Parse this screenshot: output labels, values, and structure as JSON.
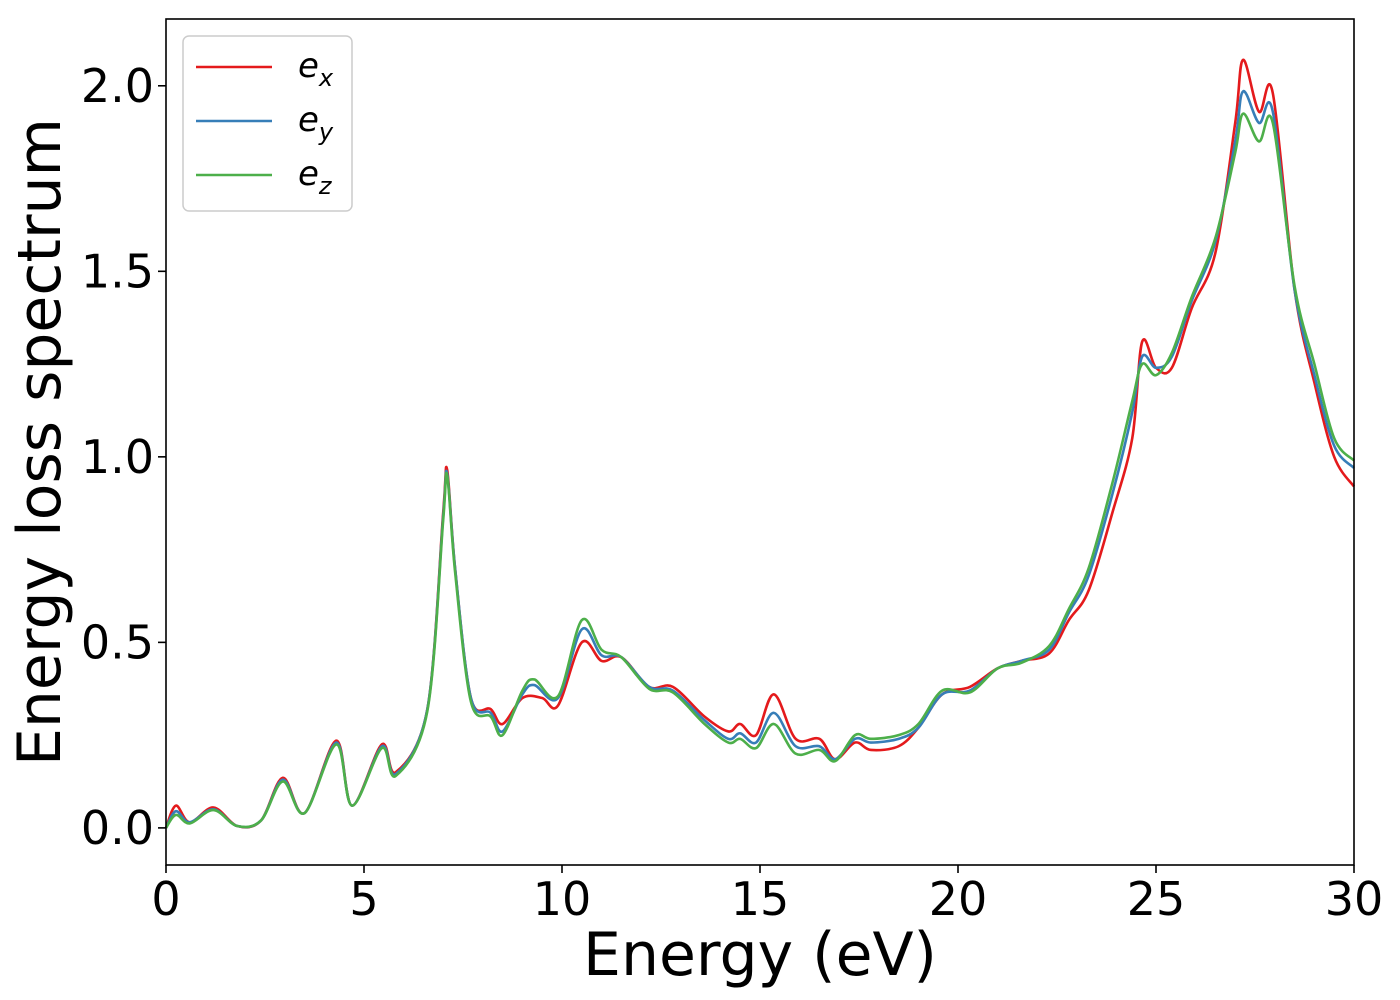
{
  "chart_data": {
    "type": "line",
    "title": "",
    "xlabel": "Energy (eV)",
    "ylabel": "Energy loss spectrum",
    "xlim": [
      0,
      30
    ],
    "ylim": [
      -0.1,
      2.18
    ],
    "x_ticks": [
      "0",
      "5",
      "10",
      "15",
      "20",
      "25",
      "30"
    ],
    "y_ticks": [
      "0.0",
      "0.5",
      "1.0",
      "1.5",
      "2.0"
    ],
    "grid": false,
    "legend_position": "top-left",
    "series": [
      {
        "name": "e",
        "subscript": "x",
        "color": "#e41a1c",
        "points": [
          [
            0,
            0.0
          ],
          [
            0.25,
            0.06
          ],
          [
            0.6,
            0.015
          ],
          [
            1.2,
            0.055
          ],
          [
            1.8,
            0.005
          ],
          [
            2.4,
            0.02
          ],
          [
            2.95,
            0.135
          ],
          [
            3.5,
            0.04
          ],
          [
            4.3,
            0.235
          ],
          [
            4.7,
            0.06
          ],
          [
            5.45,
            0.225
          ],
          [
            5.8,
            0.15
          ],
          [
            6.6,
            0.32
          ],
          [
            7.0,
            0.85
          ],
          [
            7.1,
            0.965
          ],
          [
            7.3,
            0.7
          ],
          [
            7.7,
            0.35
          ],
          [
            8.2,
            0.32
          ],
          [
            8.5,
            0.28
          ],
          [
            9.0,
            0.35
          ],
          [
            9.5,
            0.35
          ],
          [
            9.9,
            0.33
          ],
          [
            10.5,
            0.5
          ],
          [
            11.0,
            0.45
          ],
          [
            11.5,
            0.46
          ],
          [
            12.2,
            0.38
          ],
          [
            12.8,
            0.38
          ],
          [
            13.6,
            0.3
          ],
          [
            14.2,
            0.26
          ],
          [
            14.5,
            0.28
          ],
          [
            14.9,
            0.25
          ],
          [
            15.35,
            0.36
          ],
          [
            15.9,
            0.24
          ],
          [
            16.5,
            0.24
          ],
          [
            16.9,
            0.185
          ],
          [
            17.4,
            0.23
          ],
          [
            17.8,
            0.21
          ],
          [
            18.5,
            0.22
          ],
          [
            19.0,
            0.27
          ],
          [
            19.6,
            0.36
          ],
          [
            20.3,
            0.38
          ],
          [
            21.0,
            0.43
          ],
          [
            21.6,
            0.45
          ],
          [
            22.3,
            0.47
          ],
          [
            22.8,
            0.56
          ],
          [
            23.3,
            0.64
          ],
          [
            23.9,
            0.85
          ],
          [
            24.4,
            1.05
          ],
          [
            24.65,
            1.31
          ],
          [
            25.0,
            1.24
          ],
          [
            25.4,
            1.24
          ],
          [
            25.9,
            1.4
          ],
          [
            26.5,
            1.55
          ],
          [
            27.0,
            1.9
          ],
          [
            27.2,
            2.07
          ],
          [
            27.6,
            1.93
          ],
          [
            27.95,
            1.98
          ],
          [
            28.5,
            1.45
          ],
          [
            29.0,
            1.2
          ],
          [
            29.5,
            1.0
          ],
          [
            30.0,
            0.92
          ]
        ]
      },
      {
        "name": "e",
        "subscript": "y",
        "color": "#377eb8",
        "points": [
          [
            0,
            0.0
          ],
          [
            0.25,
            0.045
          ],
          [
            0.6,
            0.015
          ],
          [
            1.2,
            0.05
          ],
          [
            1.8,
            0.005
          ],
          [
            2.4,
            0.02
          ],
          [
            2.95,
            0.13
          ],
          [
            3.5,
            0.04
          ],
          [
            4.3,
            0.23
          ],
          [
            4.7,
            0.06
          ],
          [
            5.45,
            0.22
          ],
          [
            5.8,
            0.145
          ],
          [
            6.6,
            0.32
          ],
          [
            7.0,
            0.84
          ],
          [
            7.1,
            0.955
          ],
          [
            7.3,
            0.7
          ],
          [
            7.7,
            0.35
          ],
          [
            8.2,
            0.31
          ],
          [
            8.5,
            0.26
          ],
          [
            9.0,
            0.36
          ],
          [
            9.3,
            0.385
          ],
          [
            9.9,
            0.35
          ],
          [
            10.5,
            0.535
          ],
          [
            11.0,
            0.465
          ],
          [
            11.5,
            0.46
          ],
          [
            12.2,
            0.38
          ],
          [
            12.8,
            0.37
          ],
          [
            13.6,
            0.29
          ],
          [
            14.2,
            0.24
          ],
          [
            14.5,
            0.255
          ],
          [
            14.9,
            0.23
          ],
          [
            15.35,
            0.31
          ],
          [
            15.9,
            0.22
          ],
          [
            16.5,
            0.22
          ],
          [
            16.9,
            0.185
          ],
          [
            17.4,
            0.24
          ],
          [
            17.8,
            0.23
          ],
          [
            18.5,
            0.24
          ],
          [
            19.0,
            0.27
          ],
          [
            19.6,
            0.36
          ],
          [
            20.3,
            0.37
          ],
          [
            21.0,
            0.43
          ],
          [
            21.6,
            0.45
          ],
          [
            22.3,
            0.48
          ],
          [
            22.8,
            0.58
          ],
          [
            23.3,
            0.68
          ],
          [
            23.9,
            0.9
          ],
          [
            24.4,
            1.12
          ],
          [
            24.65,
            1.27
          ],
          [
            25.0,
            1.24
          ],
          [
            25.4,
            1.27
          ],
          [
            25.9,
            1.42
          ],
          [
            26.5,
            1.58
          ],
          [
            27.0,
            1.85
          ],
          [
            27.2,
            1.985
          ],
          [
            27.6,
            1.9
          ],
          [
            27.95,
            1.93
          ],
          [
            28.5,
            1.45
          ],
          [
            29.0,
            1.22
          ],
          [
            29.5,
            1.03
          ],
          [
            30.0,
            0.97
          ]
        ]
      },
      {
        "name": "e",
        "subscript": "z",
        "color": "#4daf4a",
        "points": [
          [
            0,
            0.0
          ],
          [
            0.25,
            0.035
          ],
          [
            0.6,
            0.012
          ],
          [
            1.2,
            0.048
          ],
          [
            1.8,
            0.005
          ],
          [
            2.4,
            0.02
          ],
          [
            2.95,
            0.125
          ],
          [
            3.5,
            0.04
          ],
          [
            4.3,
            0.225
          ],
          [
            4.7,
            0.06
          ],
          [
            5.45,
            0.215
          ],
          [
            5.8,
            0.14
          ],
          [
            6.6,
            0.315
          ],
          [
            7.0,
            0.83
          ],
          [
            7.1,
            0.95
          ],
          [
            7.3,
            0.69
          ],
          [
            7.7,
            0.34
          ],
          [
            8.2,
            0.3
          ],
          [
            8.5,
            0.25
          ],
          [
            9.0,
            0.37
          ],
          [
            9.3,
            0.4
          ],
          [
            9.9,
            0.355
          ],
          [
            10.5,
            0.56
          ],
          [
            11.0,
            0.48
          ],
          [
            11.5,
            0.46
          ],
          [
            12.2,
            0.375
          ],
          [
            12.8,
            0.365
          ],
          [
            13.6,
            0.28
          ],
          [
            14.2,
            0.23
          ],
          [
            14.5,
            0.24
          ],
          [
            14.9,
            0.215
          ],
          [
            15.35,
            0.28
          ],
          [
            15.9,
            0.2
          ],
          [
            16.5,
            0.21
          ],
          [
            16.9,
            0.18
          ],
          [
            17.4,
            0.25
          ],
          [
            17.8,
            0.24
          ],
          [
            18.5,
            0.25
          ],
          [
            19.0,
            0.28
          ],
          [
            19.6,
            0.37
          ],
          [
            20.3,
            0.365
          ],
          [
            21.0,
            0.43
          ],
          [
            21.6,
            0.445
          ],
          [
            22.3,
            0.49
          ],
          [
            22.8,
            0.59
          ],
          [
            23.3,
            0.7
          ],
          [
            23.9,
            0.93
          ],
          [
            24.4,
            1.15
          ],
          [
            24.65,
            1.25
          ],
          [
            25.0,
            1.22
          ],
          [
            25.4,
            1.28
          ],
          [
            25.9,
            1.43
          ],
          [
            26.5,
            1.59
          ],
          [
            27.0,
            1.82
          ],
          [
            27.2,
            1.925
          ],
          [
            27.6,
            1.85
          ],
          [
            27.95,
            1.9
          ],
          [
            28.5,
            1.46
          ],
          [
            29.0,
            1.25
          ],
          [
            29.5,
            1.05
          ],
          [
            30.0,
            0.99
          ]
        ]
      }
    ]
  }
}
